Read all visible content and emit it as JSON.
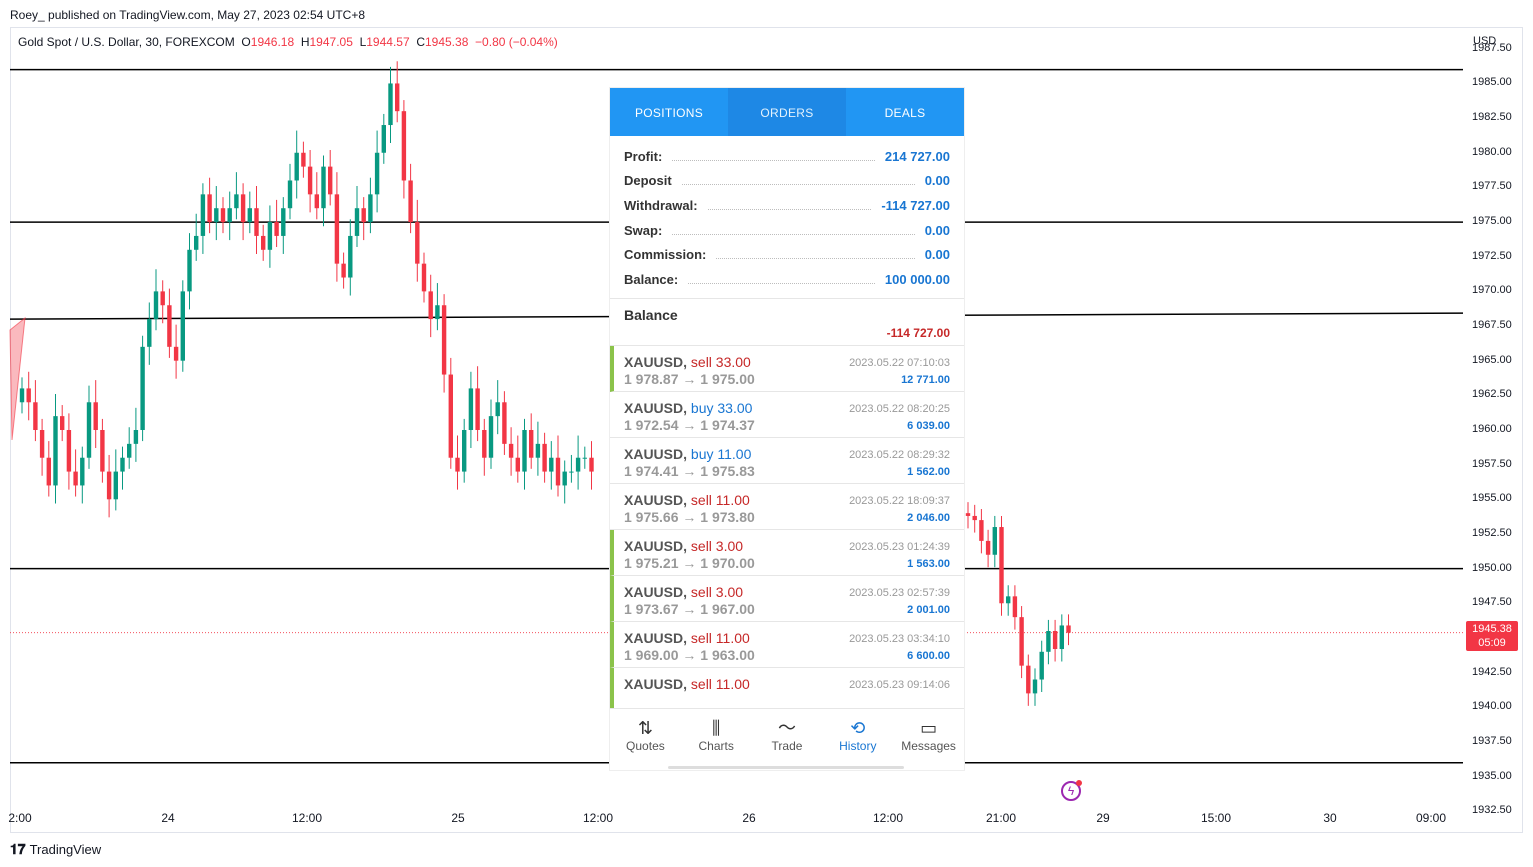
{
  "header": {
    "published": "Roey_ published on TradingView.com, May 27, 2023 02:54 UTC+8"
  },
  "legend": {
    "symbol": "Gold Spot / U.S. Dollar, 30, FOREXCOM",
    "o_label": "O",
    "o": "1946.18",
    "h_label": "H",
    "h": "1947.05",
    "l_label": "L",
    "l": "1944.57",
    "c_label": "C",
    "c": "1945.38",
    "change": "−0.80 (−0.04%)"
  },
  "axis": {
    "currency": "USD",
    "price_ticks": [
      "1987.50",
      "1985.00",
      "1982.50",
      "1980.00",
      "1977.50",
      "1975.00",
      "1972.50",
      "1970.00",
      "1967.50",
      "1965.00",
      "1962.50",
      "1960.00",
      "1957.50",
      "1955.00",
      "1952.50",
      "1950.00",
      "1947.50",
      "1942.50",
      "1940.00",
      "1937.50",
      "1935.00",
      "1932.50"
    ],
    "time_ticks": [
      "2:00",
      "24",
      "12:00",
      "25",
      "12:00",
      "26",
      "12:00",
      "21:00",
      "29",
      "15:00",
      "30",
      "09:00"
    ],
    "last_price": "1945.38",
    "countdown": "05:09"
  },
  "chart_data": {
    "type": "candlestick",
    "symbol": "Gold Spot / U.S. Dollar",
    "timeframe": "30",
    "ylim": [
      1931,
      1989
    ],
    "horizontal_levels": [
      1986,
      1975,
      1968,
      1950,
      1936
    ],
    "last_price": 1945.38,
    "candles_left_ohlc_sample": "23 May 18:00 → 25 May 14:00",
    "open": 1946.18,
    "high": 1947.05,
    "low": 1944.57,
    "close": 1945.38
  },
  "panel": {
    "tabs": [
      "POSITIONS",
      "ORDERS",
      "DEALS"
    ],
    "summary": [
      {
        "k": "Profit:",
        "v": "214 727.00"
      },
      {
        "k": "Deposit",
        "v": "0.00"
      },
      {
        "k": "Withdrawal:",
        "v": "-114 727.00"
      },
      {
        "k": "Swap:",
        "v": "0.00"
      },
      {
        "k": "Commission:",
        "v": "0.00"
      },
      {
        "k": "Balance:",
        "v": "100 000.00"
      }
    ],
    "balance_title": "Balance",
    "balance_value": "-114 727.00",
    "deals": [
      {
        "sym": "XAUUSD,",
        "side": "sell",
        "vol": "33.00",
        "px": "1 978.87 → 1 975.00",
        "dt": "2023.05.22 07:10:03",
        "pr": "12 771.00",
        "mark": true
      },
      {
        "sym": "XAUUSD,",
        "side": "buy",
        "vol": "33.00",
        "px": "1 972.54 → 1 974.37",
        "dt": "2023.05.22 08:20:25",
        "pr": "6 039.00",
        "mark": false
      },
      {
        "sym": "XAUUSD,",
        "side": "buy",
        "vol": "11.00",
        "px": "1 974.41 → 1 975.83",
        "dt": "2023.05.22 08:29:32",
        "pr": "1 562.00",
        "mark": false
      },
      {
        "sym": "XAUUSD,",
        "side": "sell",
        "vol": "11.00",
        "px": "1 975.66 → 1 973.80",
        "dt": "2023.05.22 18:09:37",
        "pr": "2 046.00",
        "mark": false
      },
      {
        "sym": "XAUUSD,",
        "side": "sell",
        "vol": "3.00",
        "px": "1 975.21 → 1 970.00",
        "dt": "2023.05.23 01:24:39",
        "pr": "1 563.00",
        "mark": true
      },
      {
        "sym": "XAUUSD,",
        "side": "sell",
        "vol": "3.00",
        "px": "1 973.67 → 1 967.00",
        "dt": "2023.05.23 02:57:39",
        "pr": "2 001.00",
        "mark": true
      },
      {
        "sym": "XAUUSD,",
        "side": "sell",
        "vol": "11.00",
        "px": "1 969.00 → 1 963.00",
        "dt": "2023.05.23 03:34:10",
        "pr": "6 600.00",
        "mark": true
      },
      {
        "sym": "XAUUSD,",
        "side": "sell",
        "vol": "11.00",
        "px": "",
        "dt": "2023.05.23 09:14:06",
        "pr": "",
        "mark": true
      }
    ],
    "nav": [
      {
        "label": "Quotes",
        "icon": "⇅",
        "name": "quotes"
      },
      {
        "label": "Charts",
        "icon": "⫼",
        "name": "charts"
      },
      {
        "label": "Trade",
        "icon": "〜",
        "name": "trade"
      },
      {
        "label": "History",
        "icon": "⟲",
        "name": "history"
      },
      {
        "label": "Messages",
        "icon": "▭",
        "name": "messages"
      }
    ],
    "nav_active": "History"
  },
  "footer": {
    "brand": "TradingView"
  },
  "colors": {
    "up": "#089981",
    "down": "#f23645",
    "accent": "#2196f3"
  }
}
